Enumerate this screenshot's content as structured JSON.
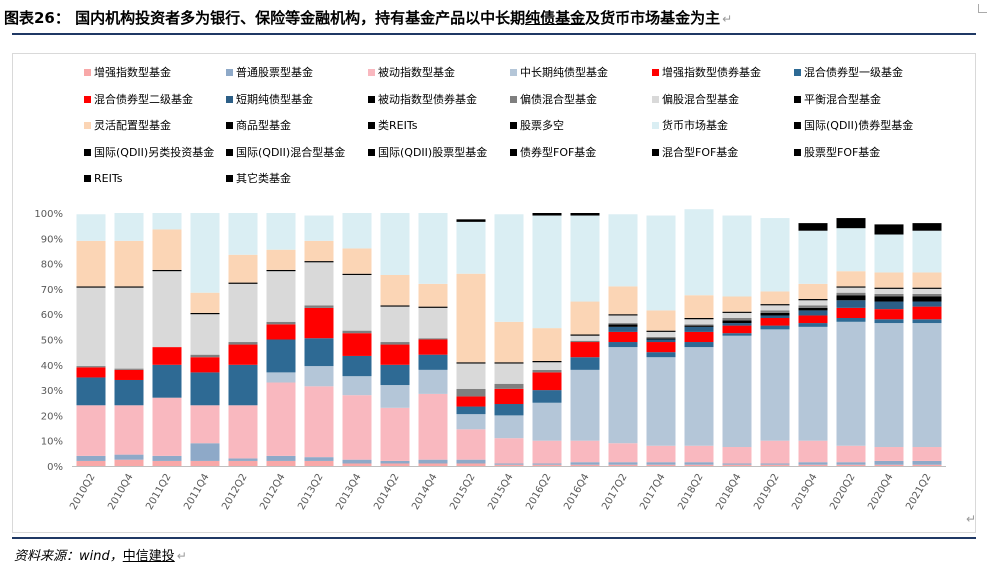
{
  "title": {
    "prefix": "图表26： 国内机构投资者多为银行、保险等金融机构，持有基金产品以中长期",
    "highlight": "纯债基金",
    "suffix": "及货币市场基金为主",
    "return_mark": "↵"
  },
  "source": {
    "label": "资料来源：wind，",
    "name": "中信建投",
    "return_mark": "↵"
  },
  "corner_return_mark": "↵",
  "chart_data": {
    "type": "stacked-bar-100",
    "title": "",
    "xlabel": "",
    "ylabel": "",
    "ylim": [
      0,
      100
    ],
    "ytick_labels": [
      "0%",
      "10%",
      "20%",
      "30%",
      "40%",
      "50%",
      "60%",
      "70%",
      "80%",
      "90%",
      "100%"
    ],
    "categories": [
      "2010Q2",
      "2010Q4",
      "2011Q2",
      "2011Q4",
      "2012Q2",
      "2012Q4",
      "2013Q2",
      "2013Q4",
      "2014Q2",
      "2014Q4",
      "2015Q2",
      "2015Q4",
      "2016Q2",
      "2016Q4",
      "2017Q2",
      "2017Q4",
      "2018Q2",
      "2018Q4",
      "2019Q2",
      "2019Q4",
      "2020Q2",
      "2020Q4",
      "2021Q2"
    ],
    "series": [
      {
        "name": "增强指数型基金",
        "color": "#f8a8a8",
        "values": [
          2,
          2.5,
          2,
          2,
          2,
          2,
          2,
          1,
          1,
          1,
          1,
          0.5,
          0.5,
          0.5,
          0.5,
          0.5,
          0.5,
          0.5,
          0.5,
          0.5,
          0.5,
          0.5,
          0.5
        ]
      },
      {
        "name": "普通股票型基金",
        "color": "#8ea9c8",
        "values": [
          2,
          2,
          2,
          7,
          1,
          2,
          1.5,
          1.5,
          1,
          1.5,
          1.5,
          0.5,
          0.5,
          1,
          1,
          1,
          1,
          0.5,
          0.5,
          1,
          1,
          1.5,
          1.5
        ]
      },
      {
        "name": "被动指数型基金",
        "color": "#f9b8bf",
        "values": [
          20,
          19.5,
          23,
          15,
          21,
          29,
          28,
          25.5,
          21,
          26,
          12,
          10,
          9,
          8.5,
          7.5,
          6.5,
          6.5,
          6.5,
          9,
          8.5,
          6.5,
          5.5,
          5.5
        ]
      },
      {
        "name": "中长期纯债型基金",
        "color": "#b4c6d8",
        "values": [
          0,
          0,
          0,
          0,
          0,
          4,
          8,
          7.5,
          9,
          9.5,
          6,
          9,
          15,
          28,
          38,
          35,
          39,
          44,
          44,
          45,
          49,
          49,
          49
        ]
      },
      {
        "name": "增强指数型债券基金",
        "color": "#ff0000",
        "values": [
          0,
          0,
          0,
          0,
          0,
          0,
          0,
          0,
          0,
          0,
          0,
          0,
          0,
          0,
          0,
          0,
          0,
          0,
          0,
          0,
          0,
          0,
          0
        ]
      },
      {
        "name": "混合债券型一级基金",
        "color": "#2e6a94",
        "values": [
          11,
          10,
          13,
          13,
          16,
          13,
          11,
          8,
          8,
          6,
          3,
          4.5,
          5,
          5,
          2,
          2,
          2,
          1,
          1.5,
          1.5,
          1.5,
          1.5,
          1.5
        ]
      },
      {
        "name": "混合债券型二级基金",
        "color": "#ff0000",
        "values": [
          4,
          4,
          7,
          6,
          8,
          6,
          12,
          9,
          8,
          6,
          4,
          6,
          7,
          6,
          4,
          4,
          4,
          3,
          3,
          3,
          4,
          4,
          5
        ]
      },
      {
        "name": "短期纯债型基金",
        "color": "#2c5f87",
        "values": [
          0,
          0,
          0,
          0,
          0,
          0,
          0,
          0,
          0,
          0,
          0,
          0,
          0,
          0,
          2,
          1,
          2,
          1,
          1,
          2,
          3,
          3,
          2
        ]
      },
      {
        "name": "被动指数型债券基金",
        "color": "#000000",
        "values": [
          0,
          0,
          0,
          0,
          0,
          0,
          0,
          0,
          0,
          0,
          0,
          0,
          0,
          0,
          1,
          0.5,
          0.5,
          1,
          1,
          1,
          2,
          2,
          2
        ]
      },
      {
        "name": "偏债混合型基金",
        "color": "#7f7f7f",
        "values": [
          0.5,
          0.5,
          0,
          1,
          1,
          1,
          1,
          1,
          1,
          0.5,
          3,
          2,
          1,
          0.5,
          0.5,
          0.5,
          0.5,
          1,
          1,
          1,
          1,
          1,
          1
        ]
      },
      {
        "name": "偏股混合型基金",
        "color": "#d9d9d9",
        "values": [
          31,
          32,
          30,
          16,
          23,
          20,
          17,
          22,
          14,
          12,
          10,
          8,
          3,
          2,
          3,
          2,
          2,
          2,
          2,
          2,
          2,
          2,
          2
        ]
      },
      {
        "name": "平衡混合型基金",
        "color": "#000000",
        "values": [
          0.5,
          0.5,
          0.5,
          0.5,
          0.5,
          0.5,
          0.5,
          0.5,
          0.5,
          0.5,
          0.5,
          0.5,
          0.5,
          0.5,
          0.5,
          0.5,
          0.5,
          0.5,
          0.5,
          0.5,
          0.5,
          0.5,
          0.5
        ]
      },
      {
        "name": "灵活配置型基金",
        "color": "#fbd5b5",
        "values": [
          18,
          18,
          16,
          8,
          11,
          8,
          8,
          10,
          12,
          9,
          35,
          16,
          13,
          13,
          11,
          8,
          9,
          6,
          5,
          6,
          6,
          6,
          6
        ]
      },
      {
        "name": "商品型基金",
        "color": "#000000",
        "values": [
          0,
          0,
          0,
          0,
          0,
          0,
          0,
          0,
          0,
          0,
          0,
          0,
          0,
          0,
          0,
          0,
          0,
          0,
          0,
          0,
          0,
          0,
          0
        ]
      },
      {
        "name": "类REITs",
        "color": "#000000",
        "values": [
          0,
          0,
          0,
          0,
          0,
          0,
          0,
          0,
          0,
          0,
          0,
          0,
          0,
          0,
          0,
          0,
          0,
          0,
          0,
          0,
          0,
          0,
          0
        ]
      },
      {
        "name": "股票多空",
        "color": "#000000",
        "values": [
          0,
          0,
          0,
          0,
          0,
          0,
          0,
          0,
          0,
          0,
          0,
          0,
          0,
          0,
          0,
          0,
          0,
          0,
          0,
          0,
          0,
          0,
          0
        ]
      },
      {
        "name": "货币市场基金",
        "color": "#daeef3",
        "values": [
          10.5,
          11,
          6.5,
          31.5,
          16.5,
          14.5,
          10,
          14,
          24.5,
          28,
          20.5,
          42.5,
          44.5,
          34,
          28.5,
          37.5,
          34,
          32,
          29,
          21,
          17,
          15,
          16.5
        ]
      },
      {
        "name": "国际(QDII)债券型基金",
        "color": "#000000",
        "values": [
          0,
          0,
          0,
          0,
          0,
          0,
          0,
          0,
          0,
          0,
          0,
          0,
          0,
          0,
          0,
          0,
          0,
          0,
          0,
          0,
          0,
          0,
          0
        ]
      },
      {
        "name": "国际(QDII)另类投资基金",
        "color": "#000000",
        "values": [
          0,
          0,
          0,
          0,
          0,
          0,
          0,
          0,
          0,
          0,
          0,
          0,
          0,
          0,
          0,
          0,
          0,
          0,
          0,
          0,
          0,
          0,
          0
        ]
      },
      {
        "name": "国际(QDII)混合型基金",
        "color": "#000000",
        "values": [
          0,
          0,
          0,
          0,
          0,
          0,
          0,
          0,
          0,
          0,
          0,
          0,
          0,
          0,
          0,
          0,
          0,
          0,
          0,
          0,
          0,
          0,
          0
        ]
      },
      {
        "name": "国际(QDII)股票型基金",
        "color": "#000000",
        "values": [
          0,
          0,
          0,
          0,
          0,
          0,
          0,
          0,
          0,
          0,
          0,
          0,
          0,
          0,
          0,
          0,
          0,
          0,
          0,
          0,
          0,
          0,
          0
        ]
      },
      {
        "name": "债券型FOF基金",
        "color": "#000000",
        "values": [
          0,
          0,
          0,
          0,
          0,
          0,
          0,
          0,
          0,
          0,
          0,
          0,
          0,
          0,
          0,
          0,
          0,
          0,
          0,
          0,
          0,
          0,
          0
        ]
      },
      {
        "name": "混合型FOF基金",
        "color": "#000000",
        "values": [
          0,
          0,
          0,
          0,
          0,
          0,
          0,
          0,
          0,
          0,
          0,
          0,
          0,
          0,
          0,
          0,
          0,
          0,
          0,
          3,
          4,
          4,
          3
        ]
      },
      {
        "name": "股票型FOF基金",
        "color": "#000000",
        "values": [
          0,
          0,
          0,
          0,
          0,
          0,
          0,
          0,
          0,
          0,
          0,
          0,
          0,
          0,
          0,
          0,
          0,
          0,
          0,
          0,
          0,
          0,
          0
        ]
      },
      {
        "name": "REITs",
        "color": "#000000",
        "values": [
          0,
          0,
          0,
          0,
          0,
          0,
          0,
          0,
          0,
          0,
          0,
          0,
          0,
          0,
          0,
          0,
          0,
          0,
          0,
          0,
          0,
          0,
          0
        ]
      },
      {
        "name": "其它类基金",
        "color": "#000000",
        "values": [
          0,
          0,
          0,
          0,
          0,
          0,
          0,
          0,
          0,
          0,
          1,
          0,
          1,
          1,
          0,
          0,
          0,
          0,
          0,
          0,
          0,
          0,
          0
        ]
      }
    ]
  }
}
